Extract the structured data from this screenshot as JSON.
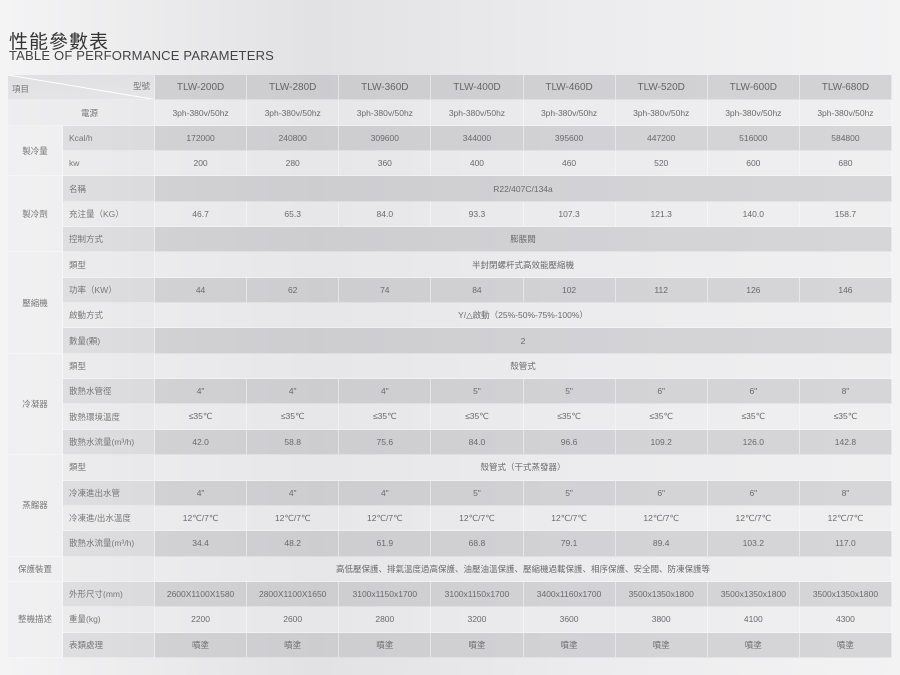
{
  "title_cn": "性能參數表",
  "title_en": "TABLE OF PERFORMANCE PARAMETERS",
  "corner": {
    "item": "項目",
    "model": "型號"
  },
  "models": [
    "TLW-200D",
    "TLW-280D",
    "TLW-360D",
    "TLW-400D",
    "TLW-460D",
    "TLW-520D",
    "TLW-600D",
    "TLW-680D"
  ],
  "groups": [
    {
      "label": "",
      "rows": [
        {
          "label": "電源",
          "values": [
            "3ph-380v/50hz",
            "3ph-380v/50hz",
            "3ph-380v/50hz",
            "3ph-380v/50hz",
            "3ph-380v/50hz",
            "3ph-380v/50hz",
            "3ph-380v/50hz",
            "3ph-380v/50hz"
          ]
        }
      ]
    },
    {
      "label": "製冷量",
      "rows": [
        {
          "label": "Kcal/h",
          "values": [
            "172000",
            "240800",
            "309600",
            "344000",
            "395600",
            "447200",
            "516000",
            "584800"
          ]
        },
        {
          "label": "kw",
          "values": [
            "200",
            "280",
            "360",
            "400",
            "460",
            "520",
            "600",
            "680"
          ]
        }
      ]
    },
    {
      "label": "製冷劑",
      "rows": [
        {
          "label": "名稱",
          "span": "R22/407C/134a"
        },
        {
          "label": "充注量（KG）",
          "values": [
            "46.7",
            "65.3",
            "84.0",
            "93.3",
            "107.3",
            "121.3",
            "140.0",
            "158.7"
          ]
        },
        {
          "label": "控制方式",
          "span": "膨脹閥"
        }
      ]
    },
    {
      "label": "壓縮機",
      "rows": [
        {
          "label": "類型",
          "span": "半封閉螺杆式高效能壓縮機"
        },
        {
          "label": "功率（KW）",
          "values": [
            "44",
            "62",
            "74",
            "84",
            "102",
            "112",
            "126",
            "146"
          ]
        },
        {
          "label": "啟動方式",
          "span": "Y/△啟動（25%-50%-75%-100%）"
        },
        {
          "label": "數量(顆)",
          "span": "2"
        }
      ]
    },
    {
      "label": "冷凝器",
      "rows": [
        {
          "label": "類型",
          "span": "殼管式"
        },
        {
          "label": "散熱水管徑",
          "values": [
            "4\"",
            "4\"",
            "4\"",
            "5\"",
            "5\"",
            "6\"",
            "6\"",
            "8\""
          ]
        },
        {
          "label": "散熱環境溫度",
          "values": [
            "≤35℃",
            "≤35℃",
            "≤35℃",
            "≤35℃",
            "≤35℃",
            "≤35℃",
            "≤35℃",
            "≤35℃"
          ]
        },
        {
          "label": "散熱水流量(m³/h)",
          "values": [
            "42.0",
            "58.8",
            "75.6",
            "84.0",
            "96.6",
            "109.2",
            "126.0",
            "142.8"
          ]
        }
      ]
    },
    {
      "label": "蒸餾器",
      "rows": [
        {
          "label": "類型",
          "span": "殼管式（干式蒸發器）"
        },
        {
          "label": "冷凍進出水管",
          "values": [
            "4\"",
            "4\"",
            "4\"",
            "5\"",
            "5\"",
            "6\"",
            "6\"",
            "8\""
          ]
        },
        {
          "label": "冷凍進/出水溫度",
          "values": [
            "12℃/7℃",
            "12℃/7℃",
            "12℃/7℃",
            "12℃/7℃",
            "12℃/7℃",
            "12℃/7℃",
            "12℃/7℃",
            "12℃/7℃"
          ]
        },
        {
          "label": "散熱水流量(m³/h)",
          "values": [
            "34.4",
            "48.2",
            "61.9",
            "68.8",
            "79.1",
            "89.4",
            "103.2",
            "117.0"
          ]
        }
      ]
    },
    {
      "label": "保護裝置",
      "rows": [
        {
          "label": "",
          "span": "高低壓保護、排氣溫度過高保護、油壓油溫保護、壓縮機過載保護、相序保護、安全閥、防凍保護等"
        }
      ]
    },
    {
      "label": "整機描述",
      "rows": [
        {
          "label": "外形尺寸(mm)",
          "values": [
            "2600X1100X1580",
            "2800X1100X1650",
            "3100x1150x1700",
            "3100x1150x1700",
            "3400x1160x1700",
            "3500x1350x1800",
            "3500x1350x1800",
            "3500x1350x1800"
          ]
        },
        {
          "label": "重量(kg)",
          "values": [
            "2200",
            "2600",
            "2800",
            "3200",
            "3600",
            "3800",
            "4100",
            "4300"
          ]
        },
        {
          "label": "表類處理",
          "values": [
            "噴塗",
            "噴塗",
            "噴塗",
            "噴塗",
            "噴塗",
            "噴塗",
            "噴塗",
            "噴塗"
          ]
        }
      ]
    }
  ]
}
